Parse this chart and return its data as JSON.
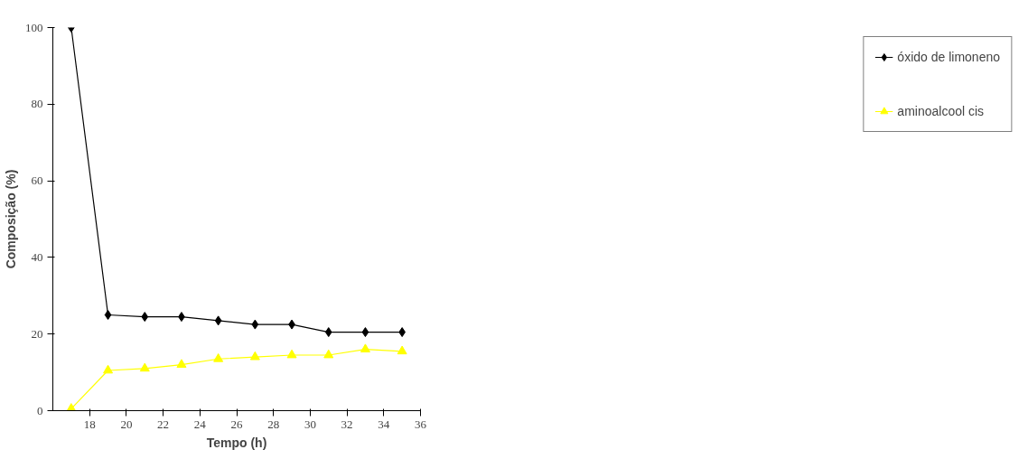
{
  "chart_data": {
    "type": "line",
    "xlabel": "Tempo (h)",
    "ylabel": "Composição (%)",
    "x": [
      17,
      19,
      21,
      23,
      25,
      27,
      29,
      31,
      33,
      35
    ],
    "series": [
      {
        "name": "óxido de limoneno",
        "color": "#000000",
        "marker": "diamond",
        "values": [
          100,
          25,
          24.5,
          24.5,
          23.5,
          22.5,
          22.5,
          20.5,
          20.5,
          20.5
        ]
      },
      {
        "name": "aminoalcool cis",
        "color": "#ffff00",
        "marker": "triangle",
        "values": [
          0.5,
          10.5,
          11,
          12,
          13.5,
          14,
          14.5,
          14.5,
          16,
          15.5
        ]
      }
    ],
    "xlim": [
      16,
      36
    ],
    "xticks": [
      18,
      20,
      22,
      24,
      26,
      28,
      30,
      32,
      34,
      36
    ],
    "ylim": [
      0,
      100
    ],
    "yticks": [
      0,
      20,
      40,
      60,
      80,
      100
    ],
    "grid": false,
    "legend": "right",
    "line_style": "solid"
  }
}
